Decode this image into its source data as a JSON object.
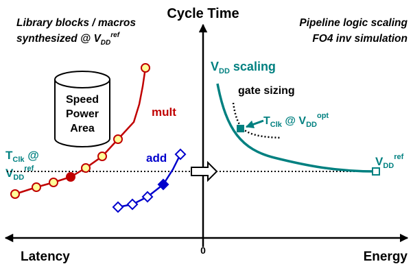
{
  "axis": {
    "y_label": "Cycle Time",
    "x_left_label": "Latency",
    "x_right_label": "Energy",
    "origin_label": "0"
  },
  "left_caption": {
    "line1": "Library blocks / macros",
    "line2_prefix": "synthesized @ V",
    "line2_sub": "DD",
    "line2_sup": "ref"
  },
  "right_caption": {
    "line1": "Pipeline logic scaling",
    "line2": "FO4 inv simulation"
  },
  "cylinder": {
    "line1": "Speed",
    "line2": "Power",
    "line3": "Area"
  },
  "tclk_left": {
    "line1": "T",
    "line1_sub": "Clk",
    "line1_suffix": " @",
    "line2": "V",
    "line2_sub": "DD",
    "line2_sup": "ref"
  },
  "mult": {
    "label": "mult",
    "color": "#c00000",
    "marker_fill": "#ffff99"
  },
  "add": {
    "label": "add",
    "color": "#0000cc"
  },
  "vdd_scaling": {
    "prefix": "V",
    "sub": "DD",
    "suffix": " scaling",
    "color": "#008080"
  },
  "gate_sizing": {
    "label": "gate sizing"
  },
  "tclk_opt": {
    "prefix": "T",
    "sub": "Clk",
    "mid": " @ V",
    "sub2": "DD",
    "sup": "opt"
  },
  "vdd_ref_right": {
    "prefix": "V",
    "sub": "DD",
    "sup": "ref"
  }
}
